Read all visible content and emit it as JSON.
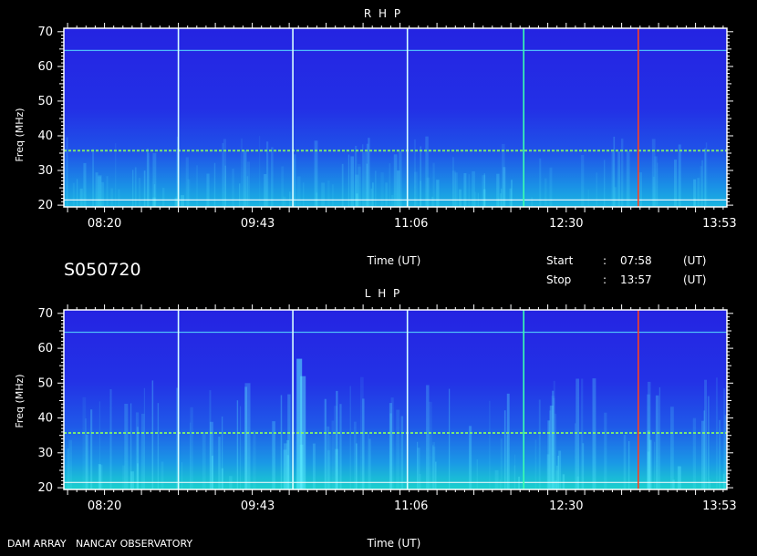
{
  "header": {
    "observation_id": "S050720",
    "footer_left": "DAM ARRAY   NANCAY OBSERVATORY",
    "start_label": "Start",
    "start_colon": ":",
    "start_time": "07:58",
    "start_unit": "(UT)",
    "stop_label": "Stop",
    "stop_colon": ":",
    "stop_time": "13:57",
    "stop_unit": "(UT)"
  },
  "colors": {
    "background": "#000000",
    "frame": "#ffffff",
    "spectrum_base": "#2323e6",
    "spectrum_mid": "#1e78e6",
    "spectrum_high": "#19d2d2",
    "hot": "#ff3030"
  },
  "chart_data": [
    {
      "type": "heatmap",
      "title": "R H P",
      "xlabel": "Time (UT)",
      "ylabel": "Freq (MHz)",
      "xticks": [
        "08:20",
        "09:43",
        "11:06",
        "12:30",
        "13:53"
      ],
      "xtick_minutes": [
        500,
        583,
        666,
        750,
        833
      ],
      "xlim_minutes": [
        478,
        837
      ],
      "yticks": [
        20,
        30,
        40,
        50,
        60,
        70
      ],
      "ylim": [
        19.5,
        71
      ],
      "vertical_lines_minutes": [
        540,
        602,
        664,
        727,
        789
      ],
      "vertical_line_colors": [
        "#d8ffff",
        "#d8ffff",
        "#d8ffff",
        "#39ffb0",
        "#ff4020"
      ],
      "horizontal_lines_mhz": [
        64.6,
        35.7,
        21.5
      ],
      "grid": false
    },
    {
      "type": "heatmap",
      "title": "L H P",
      "xlabel": "Time (UT)",
      "ylabel": "Freq (MHz)",
      "xticks": [
        "08:20",
        "09:43",
        "11:06",
        "12:30",
        "13:53"
      ],
      "xtick_minutes": [
        500,
        583,
        666,
        750,
        833
      ],
      "xlim_minutes": [
        478,
        837
      ],
      "yticks": [
        20,
        30,
        40,
        50,
        60,
        70
      ],
      "ylim": [
        19.5,
        71
      ],
      "vertical_lines_minutes": [
        540,
        602,
        664,
        727,
        789
      ],
      "vertical_line_colors": [
        "#d8ffff",
        "#d8ffff",
        "#d8ffff",
        "#39ffb0",
        "#ff4020"
      ],
      "horizontal_lines_mhz": [
        64.6,
        35.7,
        21.5
      ],
      "grid": false
    }
  ]
}
